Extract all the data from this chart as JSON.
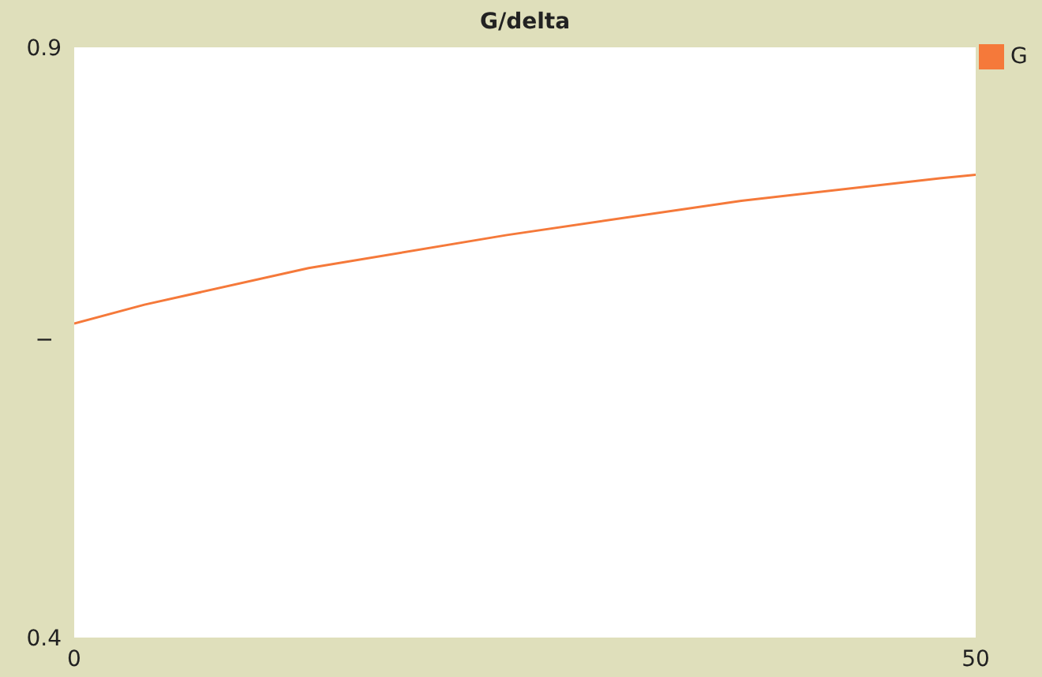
{
  "chart_data": {
    "type": "line",
    "title": "G/delta",
    "ylabel": "I",
    "x": [
      0,
      3.9,
      13,
      24,
      37,
      48,
      50
    ],
    "series": [
      {
        "name": "G",
        "color": "#f5793a",
        "values": [
          0.666,
          0.682,
          0.713,
          0.741,
          0.77,
          0.789,
          0.792
        ]
      }
    ],
    "xlim": [
      0,
      50
    ],
    "xticks": [
      0,
      50
    ],
    "ylim": [
      0.4,
      0.9
    ],
    "yticks": [
      0.4,
      0.9
    ],
    "legend": "top right",
    "grid": false,
    "marker": "none",
    "line_style": "solid"
  }
}
